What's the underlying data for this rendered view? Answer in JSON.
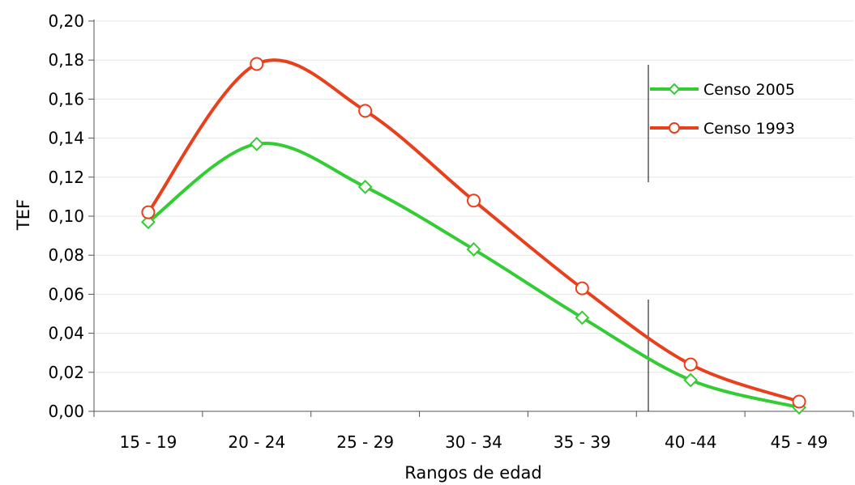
{
  "chart_data": {
    "type": "line",
    "categories": [
      "15 - 19",
      "20 - 24",
      "25 - 29",
      "30 - 34",
      "35 - 39",
      "40 -44",
      "45 - 49"
    ],
    "series": [
      {
        "name": "Censo 2005",
        "values": [
          0.097,
          0.137,
          0.115,
          0.083,
          0.048,
          0.016,
          0.002
        ],
        "color": "#33cc33",
        "marker": "diamond"
      },
      {
        "name": "Censo 1993",
        "values": [
          0.102,
          0.178,
          0.154,
          0.108,
          0.063,
          0.024,
          0.005
        ],
        "color": "#e8401c",
        "marker": "circle"
      }
    ],
    "xlabel": "Rangos de edad",
    "ylabel": "TEF",
    "ylim": [
      0,
      0.2
    ],
    "yticks": [
      "0,00",
      "0,02",
      "0,04",
      "0,06",
      "0,08",
      "0,10",
      "0,12",
      "0,14",
      "0,16",
      "0,18",
      "0,20"
    ],
    "legend_position": "top-right",
    "grid": true
  }
}
